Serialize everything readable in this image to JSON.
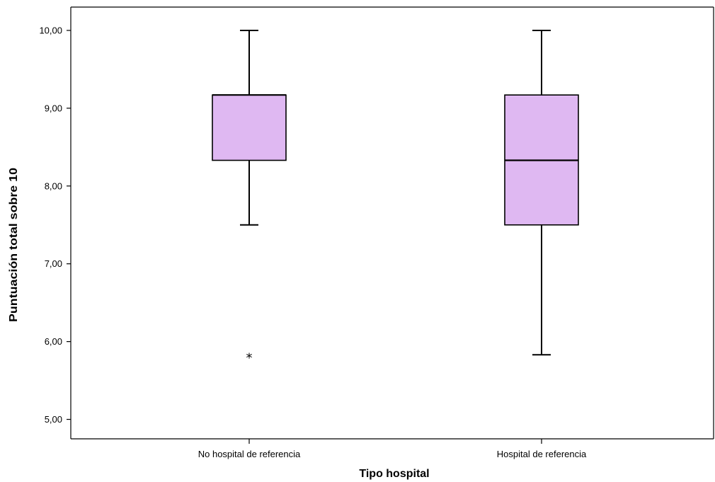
{
  "chart_data": {
    "type": "boxplot",
    "xlabel": "Tipo hospital",
    "ylabel": "Puntuación total sobre 10",
    "ylim": [
      4.75,
      10.3
    ],
    "yticks": [
      {
        "value": 5,
        "label": "5,00"
      },
      {
        "value": 6,
        "label": "6,00"
      },
      {
        "value": 7,
        "label": "7,00"
      },
      {
        "value": 8,
        "label": "8,00"
      },
      {
        "value": 9,
        "label": "9,00"
      },
      {
        "value": 10,
        "label": "10,00"
      }
    ],
    "grid": false,
    "legend": "none",
    "box_color": "#dfb8f2",
    "categories": [
      "No hospital de referencia",
      "Hospital de referencia"
    ],
    "boxes": [
      {
        "category": "No hospital de referencia",
        "whisker_low": 7.5,
        "q1": 8.33,
        "median": 9.17,
        "q3": 9.17,
        "whisker_high": 10.0,
        "outliers": [
          {
            "value": 5.83,
            "marker": "*"
          }
        ]
      },
      {
        "category": "Hospital de referencia",
        "whisker_low": 5.83,
        "q1": 7.5,
        "median": 8.33,
        "q3": 9.17,
        "whisker_high": 10.0,
        "outliers": []
      }
    ]
  }
}
